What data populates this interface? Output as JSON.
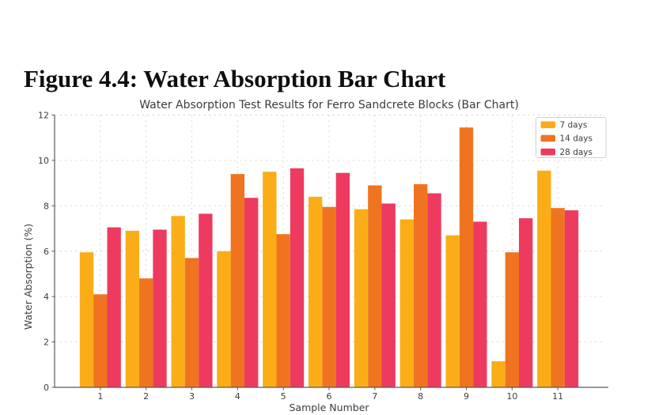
{
  "figure_caption": "Figure 4.4: Water Absorption Bar Chart",
  "chart_data": {
    "type": "bar",
    "title": "Water Absorption Test Results for Ferro Sandcrete Blocks (Bar Chart)",
    "xlabel": "Sample Number",
    "ylabel": "Water Absorption (%)",
    "categories": [
      "1",
      "2",
      "3",
      "4",
      "5",
      "6",
      "7",
      "8",
      "9",
      "10",
      "11"
    ],
    "series": [
      {
        "name": "7 days",
        "color": "#FBAD18",
        "values": [
          5.95,
          6.9,
          7.55,
          6.0,
          9.5,
          8.4,
          7.85,
          7.4,
          6.7,
          1.15,
          9.55
        ]
      },
      {
        "name": "14 days",
        "color": "#F0741F",
        "values": [
          4.1,
          4.8,
          5.7,
          9.4,
          6.75,
          7.95,
          8.9,
          8.95,
          11.45,
          5.95,
          7.9
        ]
      },
      {
        "name": "28 days",
        "color": "#EE3A5F",
        "values": [
          7.05,
          6.95,
          7.65,
          8.35,
          9.65,
          9.45,
          8.1,
          8.55,
          7.3,
          7.45,
          7.8
        ]
      }
    ],
    "ylim": [
      0,
      12
    ],
    "yticks": [
      0,
      2,
      4,
      6,
      8,
      10,
      12
    ],
    "grid": "dashed-both-axes",
    "legend": {
      "position": "upper-right"
    },
    "style": {
      "grid_color": "#d9d9d9",
      "spine_color": "#5a5a5a",
      "tick_label_color": "#3d3d3d",
      "axis_label_color": "#3d3d3d",
      "title_color": "#3b3b3b",
      "legend_border_color": "#cfcfcf",
      "background": "#ffffff"
    }
  }
}
